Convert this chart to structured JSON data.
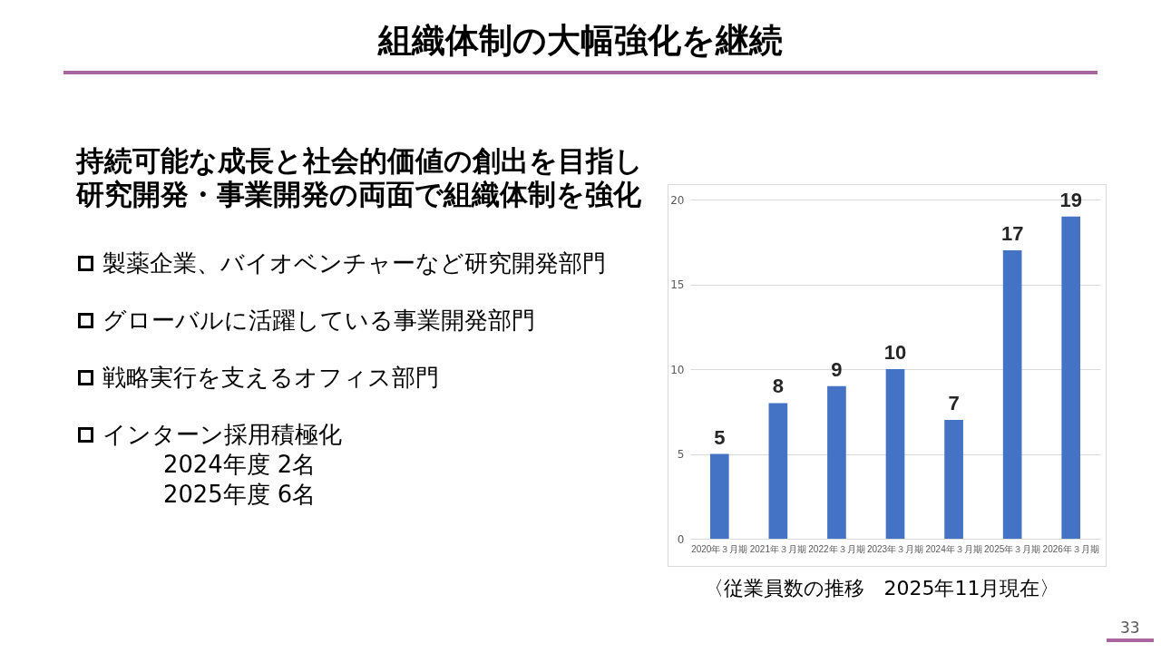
{
  "chart_data": [
    {
      "type": "other",
      "title": "組織体制の大幅強化を継続",
      "subtitle": "持続可能な成長と社会的価値の創出を目指し研究開発・事業開発の両面で組織体制を強化",
      "annotations": [
        "製薬企業、バイオベンチャーなど研究開発部門",
        "グローバルに活躍している事業開発部門",
        "戦略実行を支えるオフィス部門",
        "インターン採用積極化\n2024年度 2名\n2025年度 6名"
      ]
    },
    {
      "type": "bar",
      "categories": [
        "2020年３月期",
        "2021年３月期",
        "2022年３月期",
        "2023年３月期",
        "2024年３月期",
        "2025年３月期",
        "2026年３月期"
      ],
      "values": [
        5,
        8,
        9,
        10,
        7,
        17,
        19
      ],
      "color": "#4472c4",
      "ylim": [
        0,
        20
      ],
      "yticks": [
        0,
        5,
        10,
        15,
        20
      ],
      "grid": "y",
      "data_labels": true,
      "annotations": [
        "〈従業員数の推移　2025年11月現在〉",
        "33"
      ]
    }
  ]
}
